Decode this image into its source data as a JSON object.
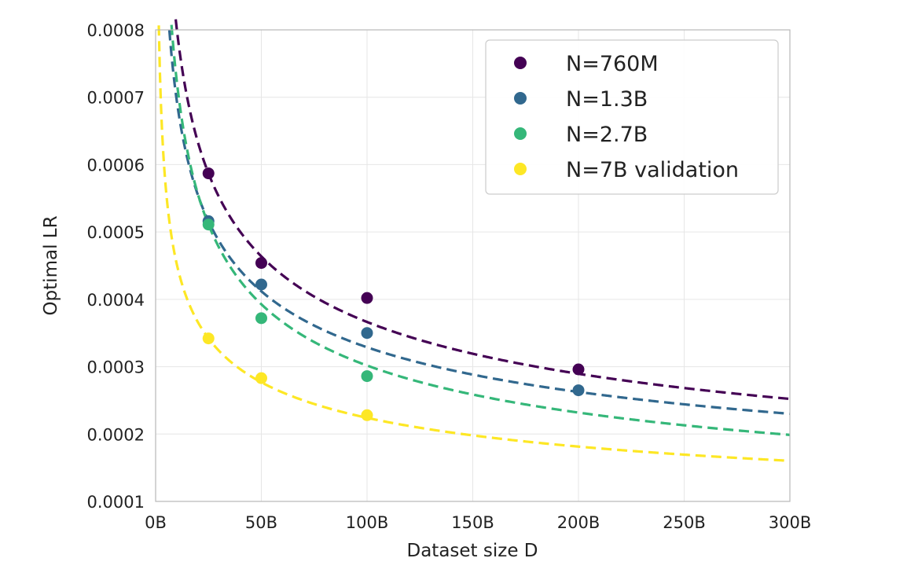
{
  "chart_data": {
    "type": "scatter",
    "title": "",
    "xlabel": "Dataset size D",
    "ylabel": "Optimal LR",
    "xlim": [
      0,
      300
    ],
    "ylim": [
      0.0001,
      0.0008
    ],
    "x_unit": "B tokens",
    "xticks": [
      0,
      50,
      100,
      150,
      200,
      250,
      300
    ],
    "xtick_labels": [
      "0B",
      "50B",
      "100B",
      "150B",
      "200B",
      "250B",
      "300B"
    ],
    "yticks": [
      0.0001,
      0.0002,
      0.0003,
      0.0004,
      0.0005,
      0.0006,
      0.0007,
      0.0008
    ],
    "ytick_labels": [
      "0.0001",
      "0.0002",
      "0.0003",
      "0.0004",
      "0.0005",
      "0.0006",
      "0.0007",
      "0.0008"
    ],
    "grid": true,
    "legend_position": "top-right",
    "series": [
      {
        "name": "N=760M",
        "color": "#440154",
        "x": [
          25,
          50,
          100,
          200
        ],
        "y": [
          0.000587,
          0.000454,
          0.000402,
          0.000296
        ],
        "fit_amplitude": 0.000587,
        "fit_exponent": 0.34,
        "fit_style": "dashed"
      },
      {
        "name": "N=1.3B",
        "color": "#31688e",
        "x": [
          25,
          50,
          100,
          200
        ],
        "y": [
          0.000516,
          0.000422,
          0.00035,
          0.000265
        ],
        "fit_amplitude": 0.000516,
        "fit_exponent": 0.325,
        "fit_style": "dashed"
      },
      {
        "name": "N=2.7B",
        "color": "#35b779",
        "x": [
          25,
          50,
          100
        ],
        "y": [
          0.000511,
          0.000372,
          0.000286
        ],
        "fit_amplitude": 0.000511,
        "fit_exponent": 0.38,
        "fit_style": "dashed"
      },
      {
        "name": "N=7B validation",
        "color": "#fde725",
        "x": [
          25,
          50,
          100
        ],
        "y": [
          0.000342,
          0.000283,
          0.000228
        ],
        "fit_amplitude": 0.000342,
        "fit_exponent": 0.305,
        "fit_style": "dashed"
      }
    ]
  }
}
